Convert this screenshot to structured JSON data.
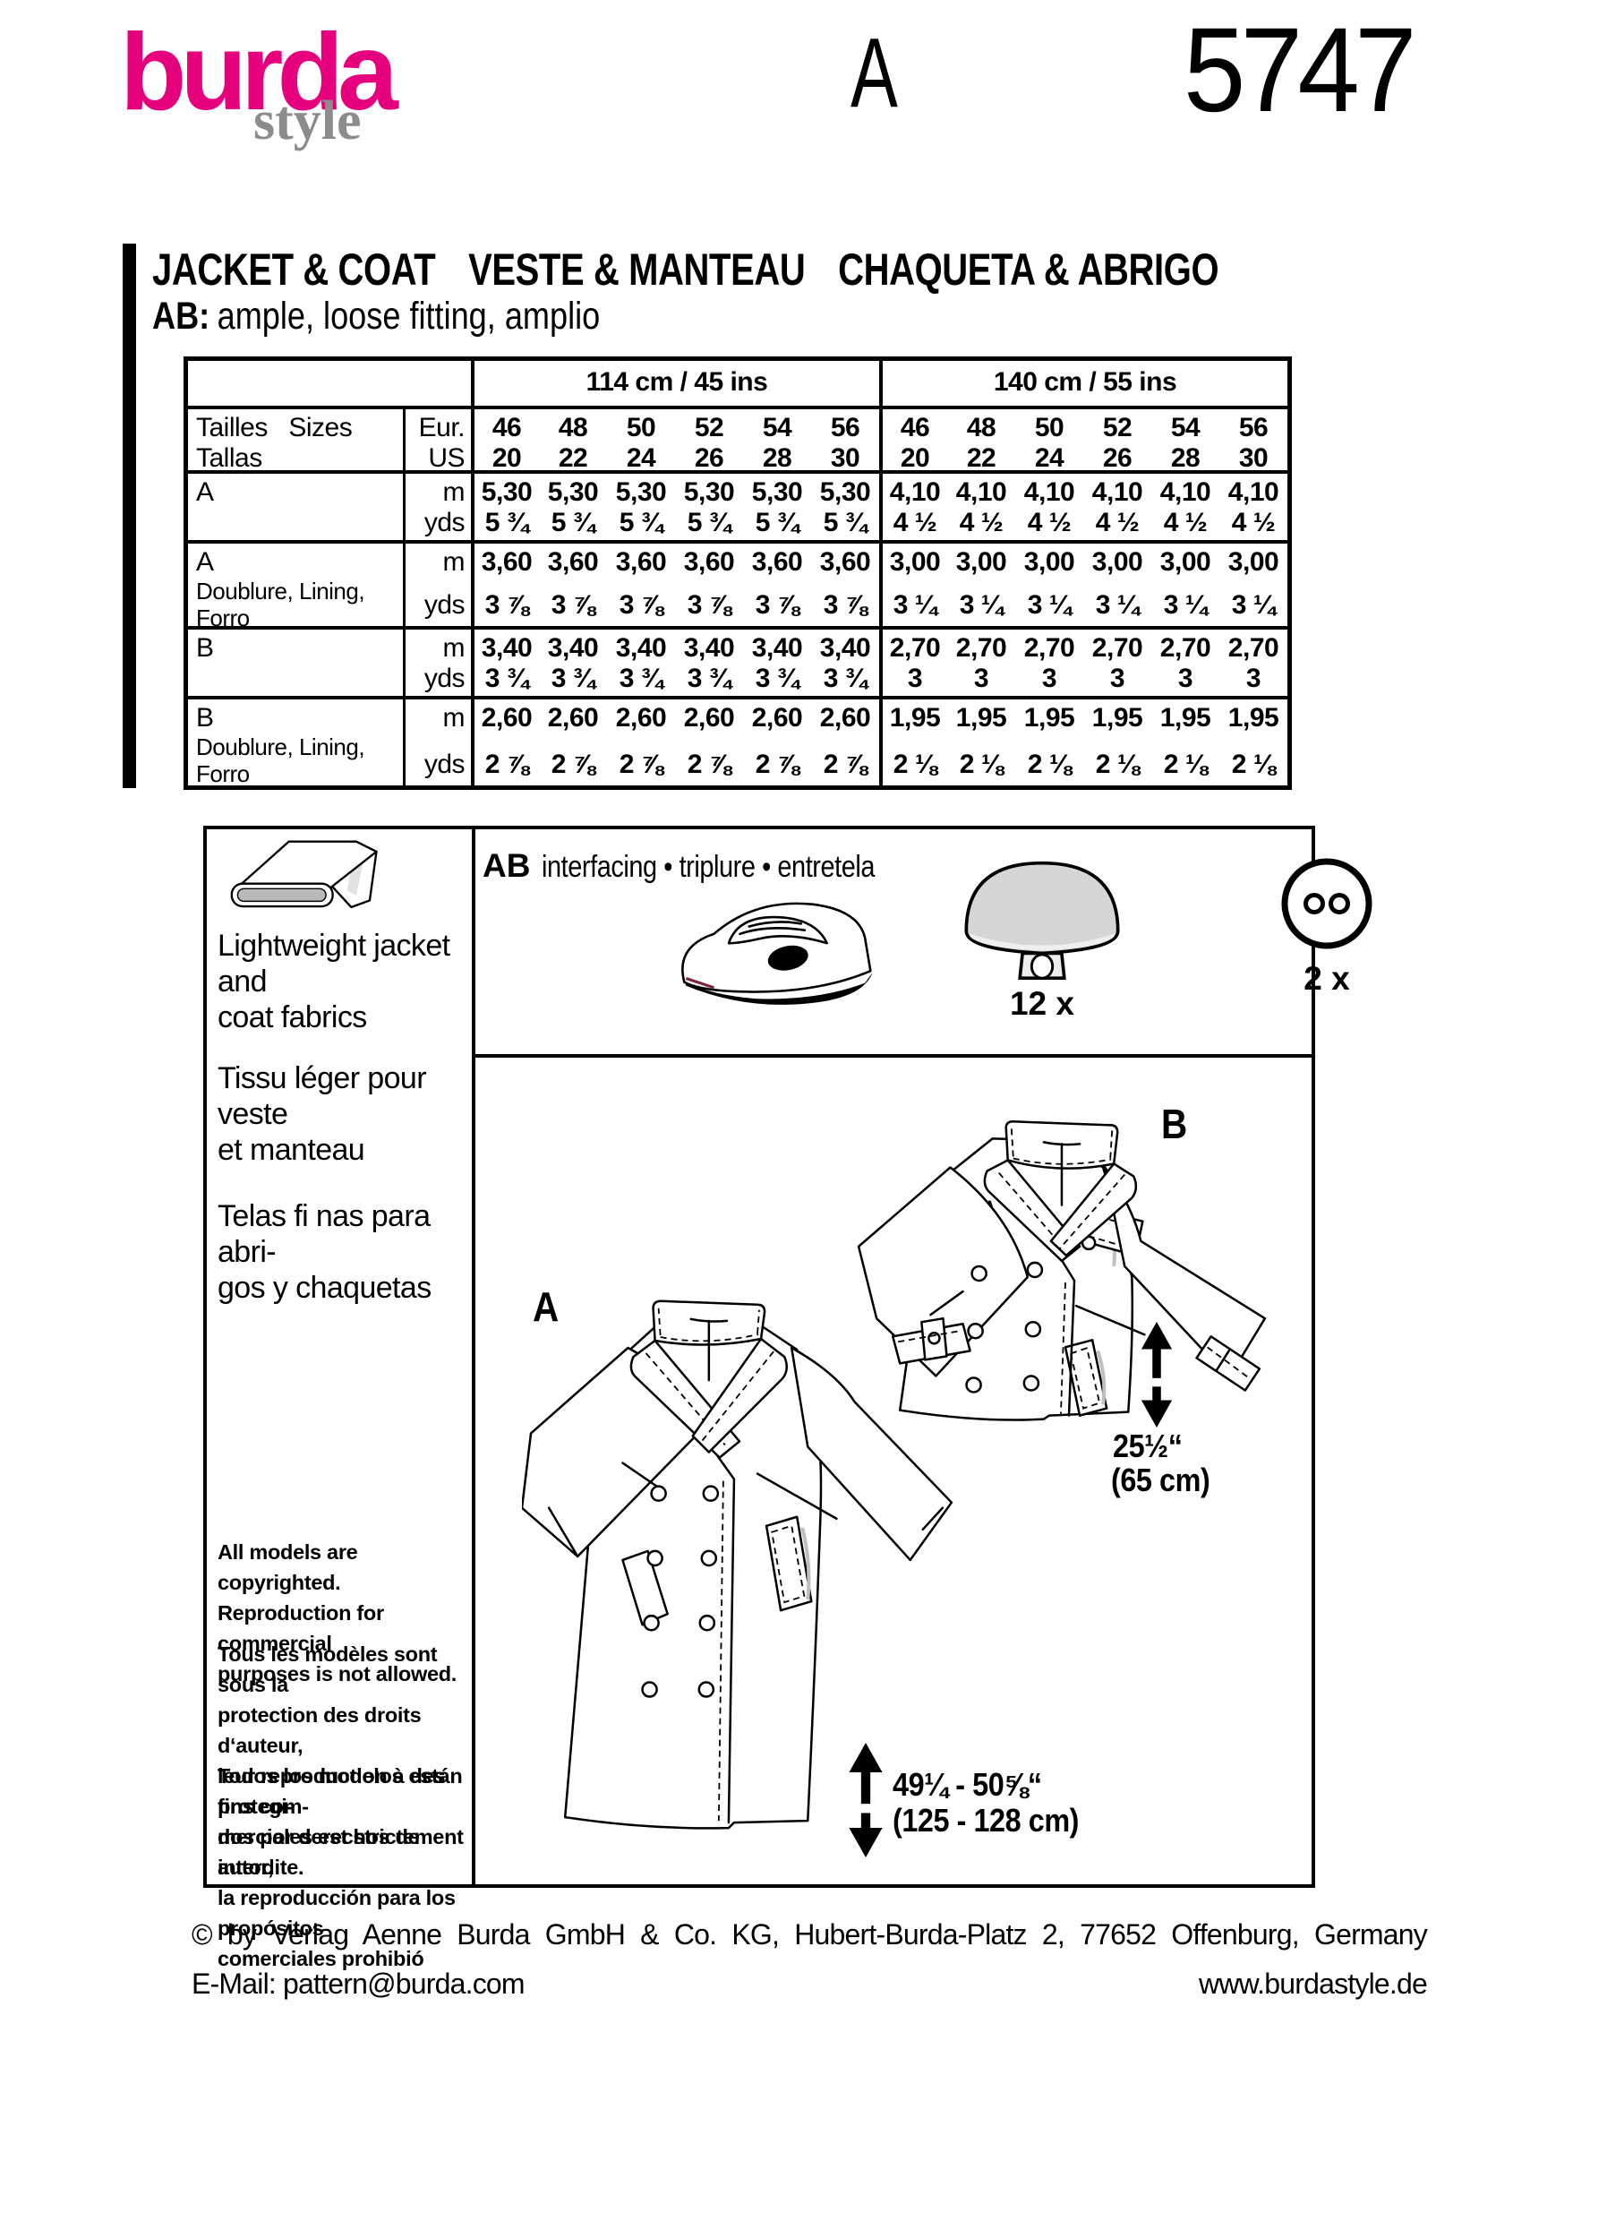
{
  "colors": {
    "brand_pink": "#e6007e",
    "brand_gray": "#8c8c8c",
    "ink": "#000000"
  },
  "header": {
    "brand": "burda",
    "brand_sub": "style",
    "view_letter": "A",
    "pattern_number": "5747"
  },
  "title_bar": {
    "titles": [
      "JACKET & COAT",
      "VESTE & MANTEAU",
      "CHAQUETA & ABRIGO"
    ],
    "ab_prefix": "AB:",
    "fit_text": "ample, loose fitting, amplio"
  },
  "size_table": {
    "col_groups": [
      "114 cm / 45 ins",
      "140 cm / 55 ins"
    ],
    "label_line1": "Tailles   Sizes",
    "label_line2": "Tallas",
    "unit_top": "Eur.",
    "unit_bottom": "US",
    "unit_m": "m",
    "unit_yds": "yds",
    "sizes_eur": [
      "46",
      "48",
      "50",
      "52",
      "54",
      "56"
    ],
    "sizes_us": [
      "20",
      "22",
      "24",
      "26",
      "28",
      "30"
    ],
    "rows": [
      {
        "label": "A",
        "sublabel": "",
        "m_114": [
          "5,30",
          "5,30",
          "5,30",
          "5,30",
          "5,30",
          "5,30"
        ],
        "yds_114": [
          "5 ¾",
          "5 ¾",
          "5 ¾",
          "5 ¾",
          "5 ¾",
          "5 ¾"
        ],
        "m_140": [
          "4,10",
          "4,10",
          "4,10",
          "4,10",
          "4,10",
          "4,10"
        ],
        "yds_140": [
          "4 ½",
          "4 ½",
          "4 ½",
          "4 ½",
          "4 ½",
          "4 ½"
        ]
      },
      {
        "label": "A",
        "sublabel": "Doublure, Lining,\nForro",
        "m_114": [
          "3,60",
          "3,60",
          "3,60",
          "3,60",
          "3,60",
          "3,60"
        ],
        "yds_114": [
          "3 ⅞",
          "3 ⅞",
          "3 ⅞",
          "3 ⅞",
          "3 ⅞",
          "3 ⅞"
        ],
        "m_140": [
          "3,00",
          "3,00",
          "3,00",
          "3,00",
          "3,00",
          "3,00"
        ],
        "yds_140": [
          "3 ¼",
          "3 ¼",
          "3 ¼",
          "3 ¼",
          "3 ¼",
          "3 ¼"
        ]
      },
      {
        "label": "B",
        "sublabel": "",
        "m_114": [
          "3,40",
          "3,40",
          "3,40",
          "3,40",
          "3,40",
          "3,40"
        ],
        "yds_114": [
          "3 ¾",
          "3 ¾",
          "3 ¾",
          "3 ¾",
          "3 ¾",
          "3 ¾"
        ],
        "m_140": [
          "2,70",
          "2,70",
          "2,70",
          "2,70",
          "2,70",
          "2,70"
        ],
        "yds_140": [
          "3",
          "3",
          "3",
          "3",
          "3",
          "3"
        ]
      },
      {
        "label": "B",
        "sublabel": "Doublure, Lining,\nForro",
        "m_114": [
          "2,60",
          "2,60",
          "2,60",
          "2,60",
          "2,60",
          "2,60"
        ],
        "yds_114": [
          "2 ⅞",
          "2 ⅞",
          "2 ⅞",
          "2 ⅞",
          "2 ⅞",
          "2 ⅞"
        ],
        "m_140": [
          "1,95",
          "1,95",
          "1,95",
          "1,95",
          "1,95",
          "1,95"
        ],
        "yds_140": [
          "2 ⅛",
          "2 ⅛",
          "2 ⅛",
          "2 ⅛",
          "2 ⅛",
          "2 ⅛"
        ]
      }
    ]
  },
  "left_panel": {
    "fabric_icon": "fabric-bolt-icon",
    "note_en": "Lightweight jacket and\ncoat fabrics",
    "note_fr": "Tissu léger pour veste\net manteau",
    "note_es": "Telas fi nas para abri-\ngos y chaquetas",
    "copyright_en": "All models are copyrighted.\nReproduction for commercial\npurposes is not allowed.",
    "copyright_fr": "Tous les modèles sont sous la\nprotection des droits d‘auteur,\nleur reproduction à des fins com-\nmerciales est strictement interdite.",
    "copyright_es": "Todos los modelos están protegi-\ndos por derechos de autor,\nla reproducción para los propósitos\ncomerciales prohibió"
  },
  "notions": {
    "ab_label": "AB",
    "text": "interfacing • triplure • entretela",
    "iron_icon": "iron-icon",
    "shank_button_icon": "shank-button-icon",
    "shank_button_qty": "12 x",
    "two_hole_button_icon": "two-hole-button-icon",
    "two_hole_button_qty": "2 x"
  },
  "views": {
    "label_a": "A",
    "label_b": "B",
    "jacket_length_in": "25½“",
    "jacket_length_cm": "(65 cm)",
    "coat_length_in": "49¼ - 50⅝“",
    "coat_length_cm": "(125 - 128 cm)"
  },
  "footer": {
    "line1": "© by Verlag Aenne Burda GmbH & Co. KG, Hubert-Burda-Platz 2, 77652 Offenburg, Germany",
    "email": "E-Mail: pattern@burda.com",
    "website": "www.burdastyle.de"
  }
}
